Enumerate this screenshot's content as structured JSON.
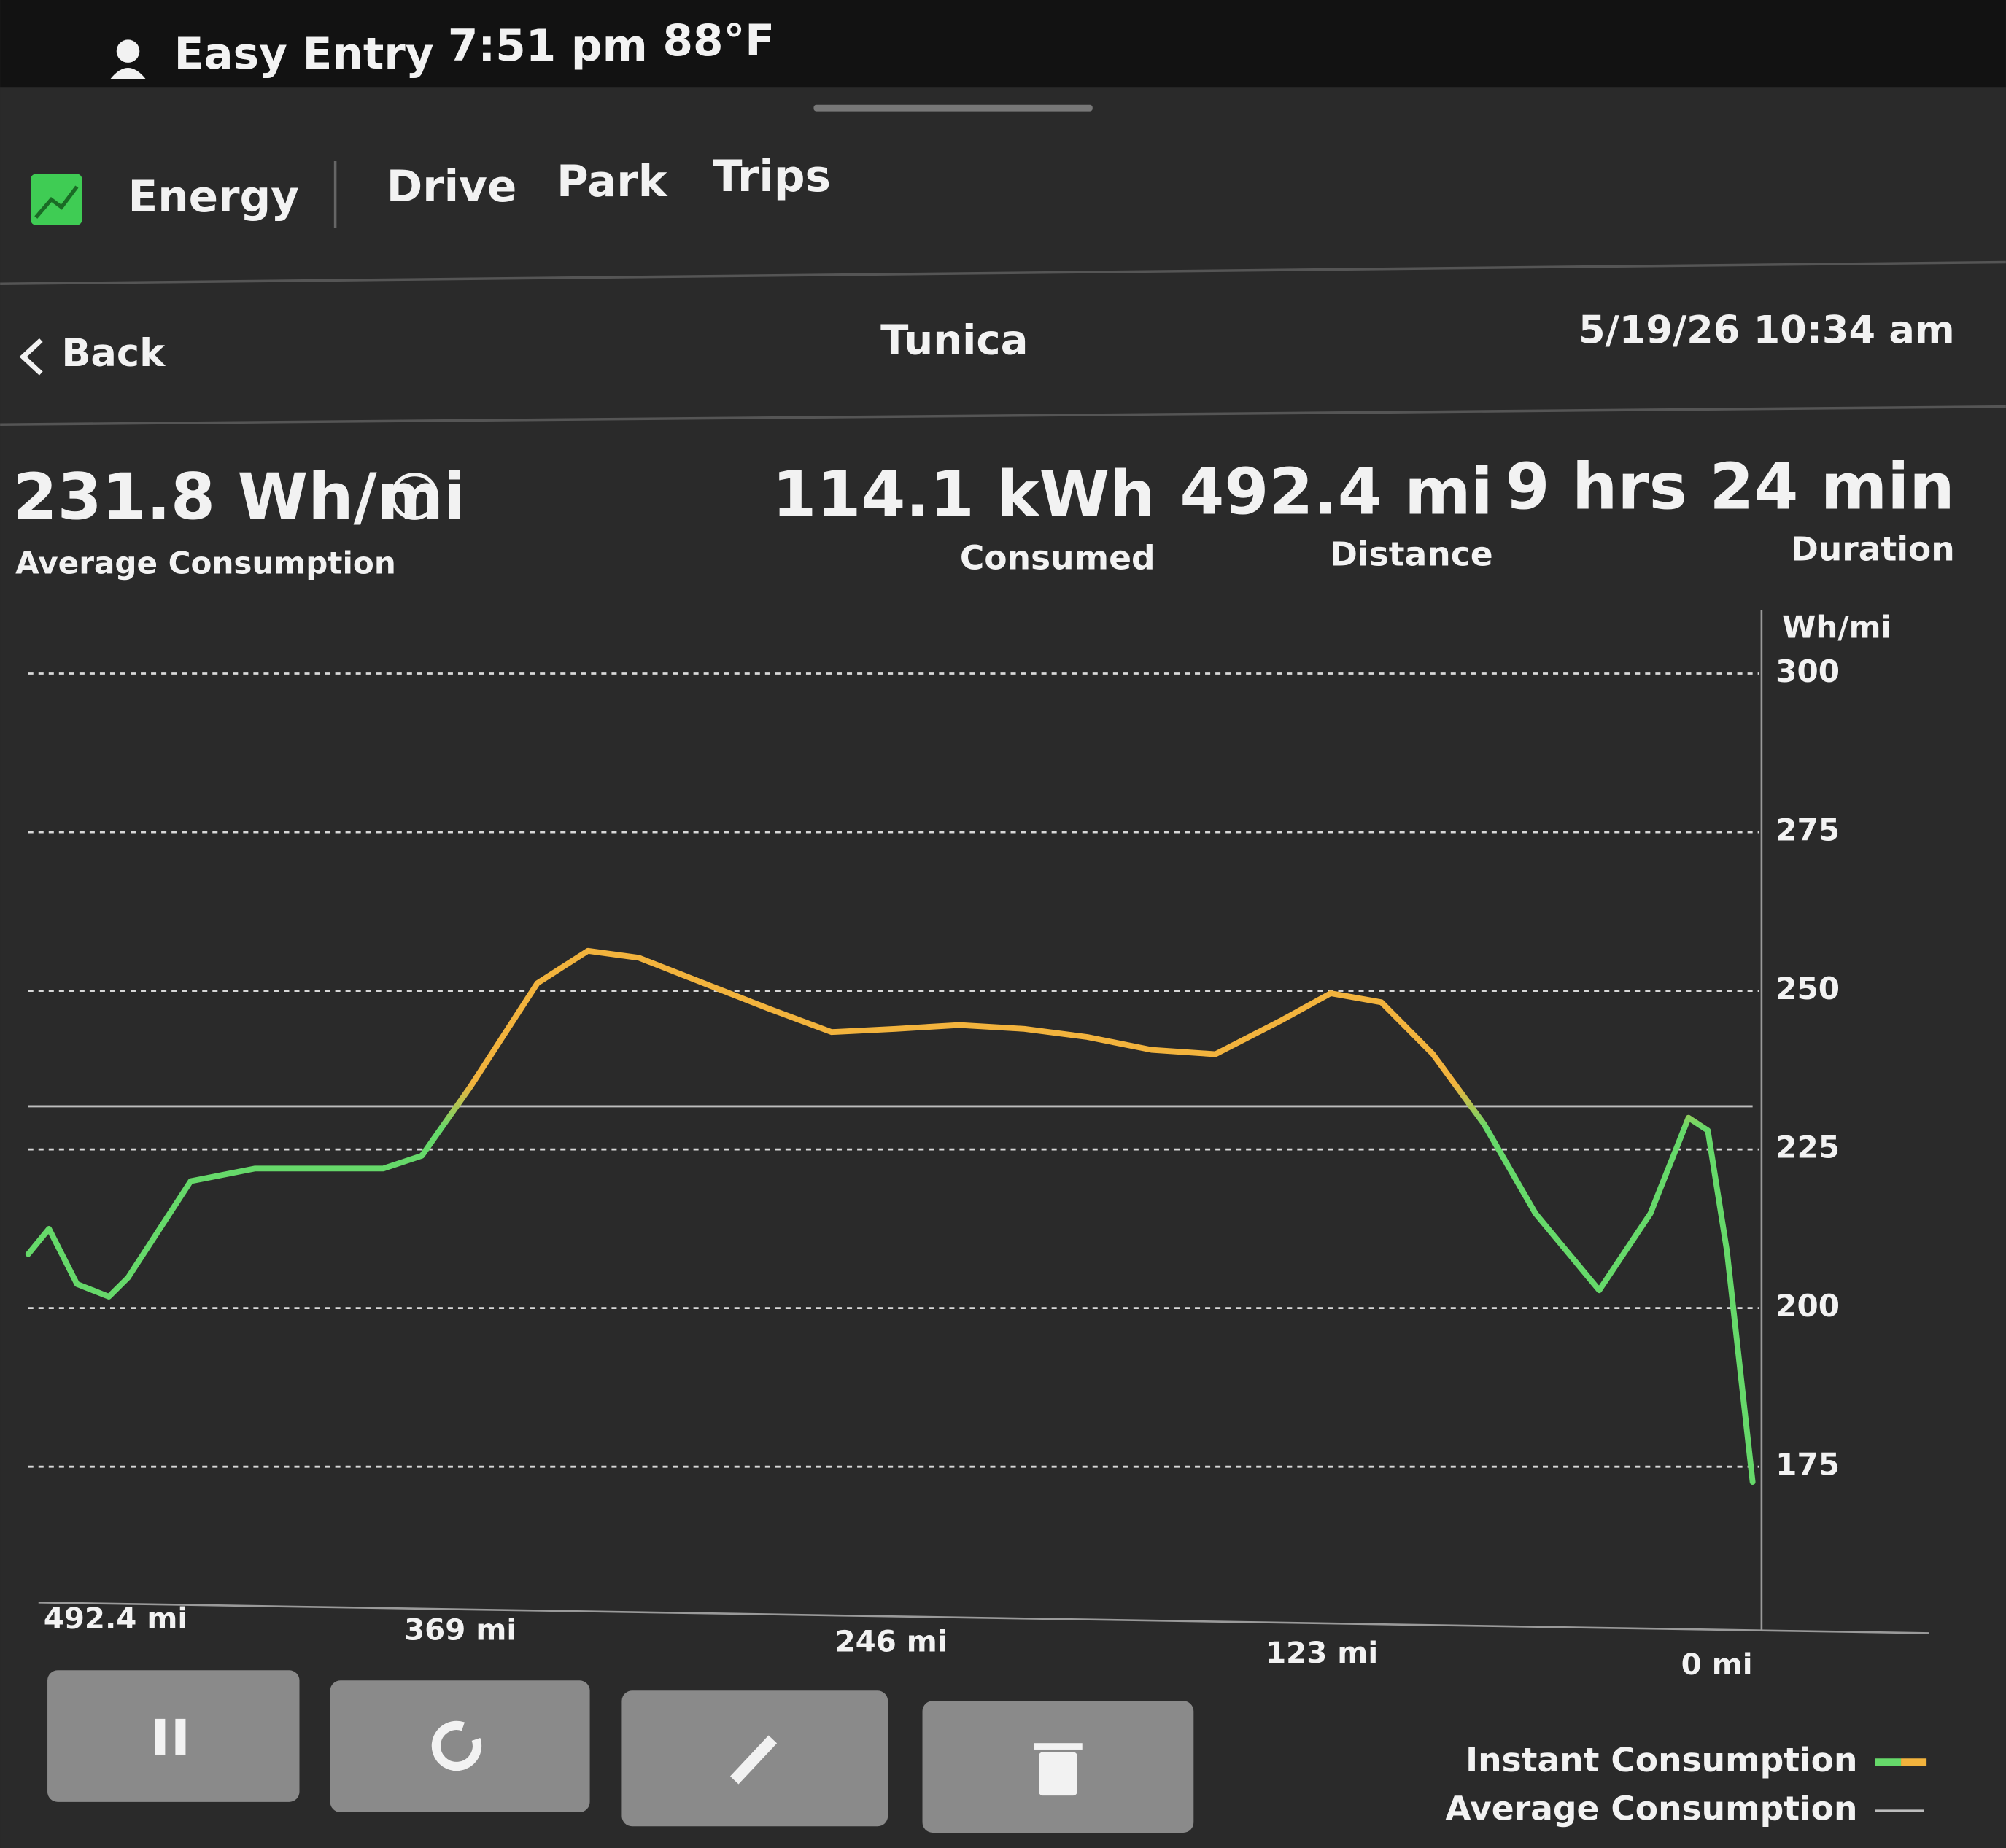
{
  "status_bar": {
    "profile": "Easy Entry",
    "time": "7:51 pm",
    "temperature": "88°F"
  },
  "tabs": [
    "Energy",
    "Drive",
    "Park",
    "Trips"
  ],
  "header": {
    "back": "Back",
    "title": "Tunica",
    "date": "5/19/26 10:34 am"
  },
  "stats": [
    {
      "value": "231.8 Wh/mi",
      "label": "Average Consumption"
    },
    {
      "value": "114.1 kWh",
      "label": "Consumed"
    },
    {
      "value": "492.4 mi",
      "label": "Distance"
    },
    {
      "value": "9 hrs 24 min",
      "label": "Duration"
    }
  ],
  "chart_data": {
    "type": "line",
    "y_label": "Wh/mi",
    "x": [
      492.4,
      486.5,
      478.5,
      469.4,
      463.9,
      446,
      427.6,
      409,
      391,
      380,
      366,
      347,
      332.6,
      318,
      299.5,
      281,
      263,
      244.7,
      226.5,
      208,
      190,
      171.7,
      153.4,
      135,
      120.5,
      106,
      91.3,
      76.7,
      62,
      43.8,
      29.2,
      18.3,
      12.8,
      7.3,
      0
    ],
    "series": [
      {
        "name": "Instant Consumption",
        "colors": [
          "#66d96a",
          "#f2b33d"
        ],
        "values": [
          208.5,
          212.5,
          203.8,
          201.8,
          204.8,
          220,
          222,
          222,
          222,
          224,
          235,
          251.2,
          256.3,
          255.2,
          251.2,
          247.2,
          243.5,
          244,
          244.6,
          244,
          242.7,
          240.7,
          240,
          245.2,
          249.6,
          248.2,
          240,
          229,
          214.9,
          202.8,
          214.9,
          230,
          228,
          208.9,
          172.6
        ]
      },
      {
        "name": "Average Consumption",
        "color": "#bdbdbd",
        "value": 231.8
      }
    ],
    "xlim": [
      492.4,
      0
    ],
    "xticks": [
      {
        "value": 492.4,
        "label": "492.4 mi"
      },
      {
        "value": 369,
        "label": "369 mi"
      },
      {
        "value": 246,
        "label": "246 mi"
      },
      {
        "value": 123,
        "label": "123 mi"
      },
      {
        "value": 0,
        "label": "0 mi"
      }
    ],
    "ylim": [
      152,
      310
    ],
    "yticks": [
      175,
      200,
      225,
      250,
      275,
      300
    ],
    "grid": true
  }
}
